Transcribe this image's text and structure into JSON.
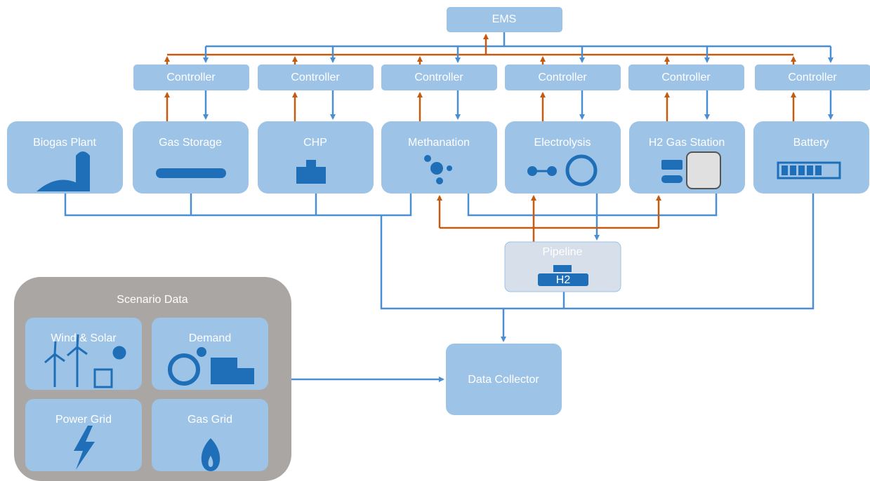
{
  "ems": {
    "label": "EMS"
  },
  "controllers": [
    "Controller",
    "Controller",
    "Controller",
    "Controller",
    "Controller",
    "Controller"
  ],
  "units": [
    "Biogas Plant",
    "Gas Storage",
    "CHP",
    "Methanation",
    "Electrolysis",
    "H2 Gas Station",
    "Battery"
  ],
  "pipeline": {
    "label": "Pipeline",
    "icon_label": "H2"
  },
  "scenario_data": {
    "title": "Scenario Data",
    "items": [
      "Wind & Solar",
      "Demand",
      "Power Grid",
      "Gas Grid"
    ]
  },
  "data_collector": {
    "label": "Data Collector"
  }
}
